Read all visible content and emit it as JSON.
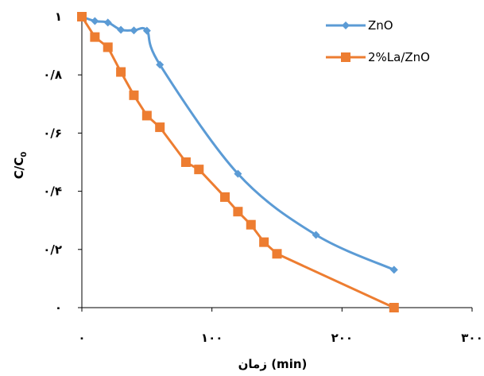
{
  "chart_data": {
    "type": "line",
    "title": "",
    "xlabel": "زمان (min)",
    "ylabel": "C/C0",
    "ylabel_main": "C/C",
    "ylabel_sub": "0",
    "xlim": [
      0,
      300
    ],
    "ylim": [
      0,
      1
    ],
    "xticks": [
      0,
      100,
      200,
      300
    ],
    "xtick_labels": [
      "۰",
      "۱۰۰",
      "۲۰۰",
      "۳۰۰"
    ],
    "yticks": [
      0,
      0.2,
      0.4,
      0.6,
      0.8,
      1
    ],
    "ytick_labels": [
      "۰",
      "۰/۲",
      "۰/۴",
      "۰/۶",
      "۰/۸",
      "۱"
    ],
    "grid": false,
    "legend_position": "top-right",
    "series": [
      {
        "name": "ZnO",
        "color": "#5B9BD5",
        "marker": "diamond",
        "x": [
          0,
          10,
          20,
          30,
          40,
          50,
          60,
          120,
          180,
          240
        ],
        "y": [
          1.0,
          0.985,
          0.98,
          0.955,
          0.953,
          0.952,
          0.835,
          0.46,
          0.25,
          0.13
        ]
      },
      {
        "name": "2%La/ZnO",
        "color": "#ED7D31",
        "marker": "square",
        "x": [
          0,
          10,
          20,
          30,
          40,
          50,
          60,
          80,
          90,
          110,
          120,
          130,
          140,
          150,
          240
        ],
        "y": [
          1.0,
          0.93,
          0.895,
          0.81,
          0.73,
          0.66,
          0.62,
          0.5,
          0.475,
          0.38,
          0.33,
          0.285,
          0.225,
          0.185,
          0.0
        ]
      }
    ]
  }
}
